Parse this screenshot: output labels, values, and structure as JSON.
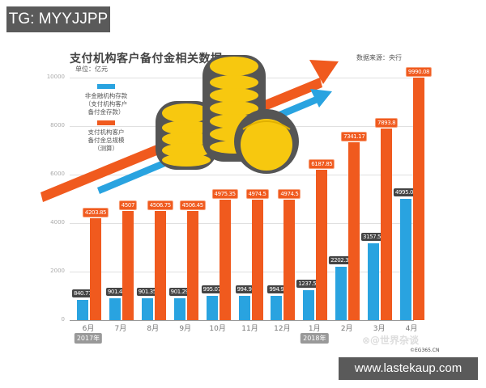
{
  "overlay": {
    "tg_label": "TG: MYYJJPP",
    "site_label": "www.lastekaup.com"
  },
  "header": {
    "title": "支付机构客户备付金相关数据",
    "unit": "单位：亿元",
    "source": "数据来源：央行"
  },
  "legend": {
    "blue": {
      "line1": "非金融机构存款",
      "line2": "（支付机构客户",
      "line3": "备付金存款）",
      "color": "#29a3e0"
    },
    "orange": {
      "line1": "支付机构客户",
      "line2": "备付金总规模",
      "line3": "（测算）",
      "color": "#f05a1e"
    }
  },
  "watermark": {
    "text": "⊗@世界杂谈",
    "credit": "©EG365.CN"
  },
  "axis": {
    "yticks": [
      "0",
      "2000",
      "4000",
      "6000",
      "8000",
      "10000"
    ],
    "year_2017": "2017年",
    "year_2018": "2018年"
  },
  "chart_data": {
    "type": "bar",
    "title": "支付机构客户备付金相关数据",
    "subtitle": "单位：亿元",
    "source": "数据来源：央行",
    "xlabel": "",
    "ylabel": "亿元",
    "ylim": [
      0,
      10000
    ],
    "yticks": [
      0,
      2000,
      4000,
      6000,
      8000,
      10000
    ],
    "grid": true,
    "legend_position": "upper-left",
    "categories": [
      "6月",
      "7月",
      "8月",
      "9月",
      "10月",
      "11月",
      "12月",
      "1月",
      "2月",
      "3月",
      "4月"
    ],
    "year_markers": [
      {
        "at": "6月",
        "label": "2017年"
      },
      {
        "at": "1月",
        "label": "2018年"
      }
    ],
    "series": [
      {
        "name": "非金融机构存款（支付机构客户备付金存款）",
        "color": "#29a3e0",
        "values": [
          840.77,
          901.4,
          901.35,
          901.29,
          995.07,
          994.9,
          994.9,
          1237.57,
          2202.35,
          3157.52,
          4995.04
        ],
        "labels": [
          "840.77",
          "901.4",
          "901.35",
          "901.29",
          "995.07",
          "994.9",
          "994.9",
          "1237.57",
          "2202.35",
          "3157.52",
          "4995.04"
        ]
      },
      {
        "name": "支付机构客户备付金总规模（测算）",
        "color": "#f05a1e",
        "values": [
          4203.85,
          4507,
          4506.75,
          4506.45,
          4975.35,
          4974.5,
          4974.5,
          6187.85,
          7341.17,
          7893.8,
          9990.08
        ],
        "labels": [
          "4203.85",
          "4507",
          "4506.75",
          "4506.45",
          "4975.35",
          "4974.5",
          "4974.5",
          "6187.85",
          "7341.17",
          "7893.8",
          "9990.08"
        ]
      }
    ]
  }
}
